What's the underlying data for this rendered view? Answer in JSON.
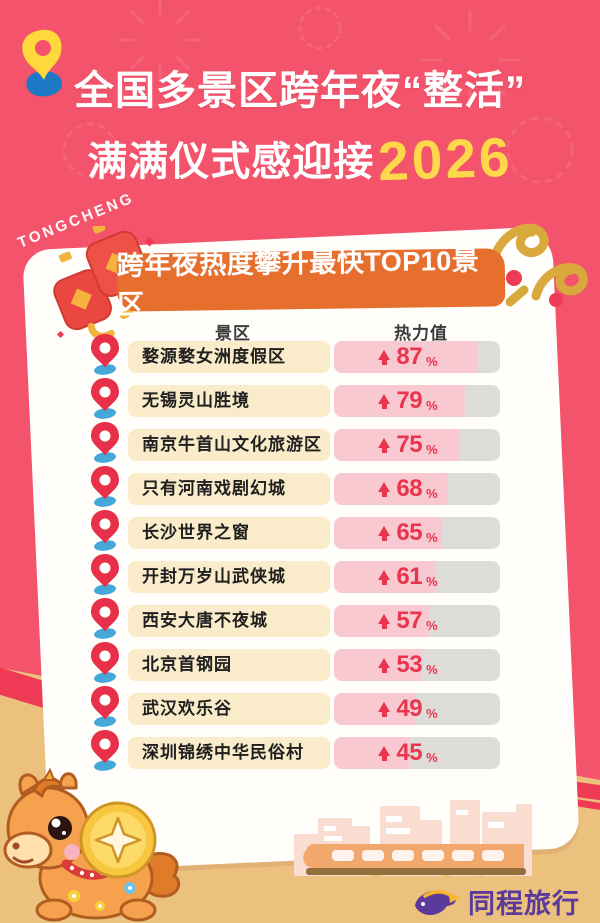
{
  "poster": {
    "title_line1": "全国多景区跨年夜“整活”",
    "title_line2_text": "满满仪式感迎接",
    "title_line2_year": "2026",
    "watermark": "TONGCHENG"
  },
  "card": {
    "banner_title": "跨年夜热度攀升最快TOP10景区",
    "columns": {
      "scenic": "景区",
      "heat": "热力值"
    }
  },
  "rows": [
    {
      "name": "婺源婺女洲度假区",
      "percent": 87
    },
    {
      "name": "无锡灵山胜境",
      "percent": 79
    },
    {
      "name": "南京牛首山文化旅游区",
      "percent": 75
    },
    {
      "name": "只有河南戏剧幻城",
      "percent": 68
    },
    {
      "name": "长沙世界之窗",
      "percent": 65
    },
    {
      "name": "开封万岁山武侠城",
      "percent": 61
    },
    {
      "name": "西安大唐不夜城",
      "percent": 57
    },
    {
      "name": "北京首钢园",
      "percent": 53
    },
    {
      "name": "武汉欢乐谷",
      "percent": 49
    },
    {
      "name": "深圳锦绣中华民俗村",
      "percent": 45
    }
  ],
  "ui": {
    "percent_sign": "%",
    "arrow_direction": "up"
  },
  "footer": {
    "brand": "同程旅行"
  },
  "colors": {
    "background_red": "#f3536b",
    "banner_orange": "#e66f2e",
    "chip_cream": "#faebca",
    "bar_track_grey": "#dddcd8",
    "bar_fill_pink": "#f8c9d0",
    "value_red": "#e9364e",
    "accent_yellow": "#fcd84a",
    "sand": "#ecc17e",
    "brand_purple": "#5b3a9b"
  },
  "chart_data": {
    "type": "bar",
    "title": "跨年夜热度攀升最快TOP10景区",
    "categories": [
      "婺源婺女洲度假区",
      "无锡灵山胜境",
      "南京牛首山文化旅游区",
      "只有河南戏剧幻城",
      "长沙世界之窗",
      "开封万岁山武侠城",
      "西安大唐不夜城",
      "北京首钢园",
      "武汉欢乐谷",
      "深圳锦绣中华民俗村"
    ],
    "values": [
      87,
      79,
      75,
      68,
      65,
      61,
      57,
      53,
      49,
      45
    ],
    "unit": "%",
    "xlabel": "热力值",
    "ylabel": "景区",
    "xlim": [
      0,
      100
    ],
    "orientation": "horizontal",
    "legend": false,
    "annotation": "每行数值前有红色上升箭头"
  }
}
